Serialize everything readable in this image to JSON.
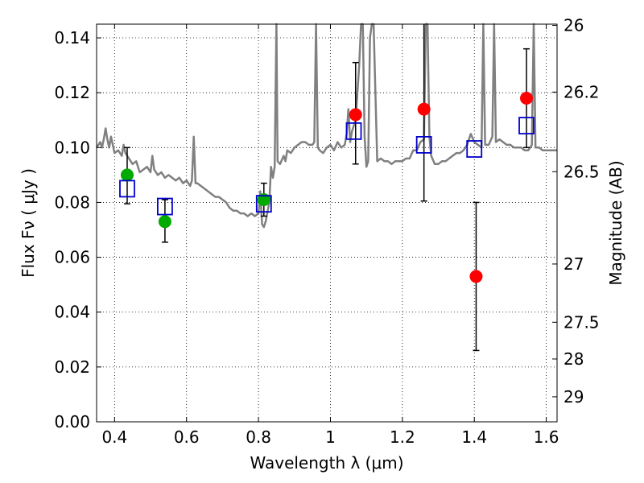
{
  "chart_data": {
    "type": "scatter",
    "xlabel": "Wavelength  λ (μm)",
    "ylabel": "Flux  Fν  ( μJy )",
    "y2label": "Magnitude (AB)",
    "xlim": [
      0.35,
      1.63
    ],
    "ylim": [
      0.0,
      0.145
    ],
    "grid": true,
    "x_ticks": [
      0.4,
      0.6,
      0.8,
      1.0,
      1.2,
      1.4,
      1.6
    ],
    "x_tick_labels": [
      "0.4",
      "0.6",
      "0.8",
      "1",
      "1.2",
      "1.4",
      "1.6"
    ],
    "y_ticks": [
      0.0,
      0.02,
      0.04,
      0.06,
      0.08,
      0.1,
      0.12,
      0.14
    ],
    "y_tick_labels": [
      "0.00",
      "0.02",
      "0.04",
      "0.06",
      "0.08",
      "0.10",
      "0.12",
      "0.14"
    ],
    "y2_ticks": [
      26,
      26.2,
      26.5,
      27,
      27.5,
      28,
      29
    ],
    "y2_tick_labels": [
      "26",
      "26.2",
      "26.5",
      "27",
      "27.5",
      "28",
      "29"
    ],
    "colors": {
      "green": "#00aa00",
      "red": "#ff0000",
      "blue": "#0000cc",
      "spectrum": "#808080",
      "errorbar": "#000000"
    },
    "series": [
      {
        "marker": "circle-green",
        "points": [
          {
            "x": 0.435,
            "y": 0.09,
            "yerr_low": 0.0795,
            "yerr_high": 0.1
          },
          {
            "x": 0.54,
            "y": 0.073,
            "yerr_low": 0.0655,
            "yerr_high": 0.081
          },
          {
            "x": 0.815,
            "y": 0.081,
            "yerr_low": 0.075,
            "yerr_high": 0.087
          }
        ]
      },
      {
        "marker": "circle-red",
        "points": [
          {
            "x": 1.07,
            "y": 0.112,
            "yerr_low": 0.094,
            "yerr_high": 0.131
          },
          {
            "x": 1.26,
            "y": 0.114,
            "yerr_low": 0.0805,
            "yerr_high": 0.146
          },
          {
            "x": 1.405,
            "y": 0.053,
            "yerr_low": 0.026,
            "yerr_high": 0.08
          },
          {
            "x": 1.545,
            "y": 0.118,
            "yerr_low": 0.1,
            "yerr_high": 0.136
          }
        ]
      },
      {
        "marker": "square-blue-open",
        "points": [
          {
            "x": 0.435,
            "y": 0.085
          },
          {
            "x": 0.54,
            "y": 0.0785
          },
          {
            "x": 0.815,
            "y": 0.0795
          },
          {
            "x": 1.065,
            "y": 0.106
          },
          {
            "x": 1.26,
            "y": 0.101
          },
          {
            "x": 1.4,
            "y": 0.0995
          },
          {
            "x": 1.545,
            "y": 0.108
          }
        ]
      },
      {
        "marker": "line-gray",
        "points": [
          [
            0.35,
            0.1
          ],
          [
            0.36,
            0.102
          ],
          [
            0.365,
            0.1
          ],
          [
            0.37,
            0.103
          ],
          [
            0.375,
            0.107
          ],
          [
            0.38,
            0.103
          ],
          [
            0.385,
            0.1
          ],
          [
            0.39,
            0.104
          ],
          [
            0.395,
            0.101
          ],
          [
            0.4,
            0.098
          ],
          [
            0.41,
            0.099
          ],
          [
            0.42,
            0.097
          ],
          [
            0.425,
            0.101
          ],
          [
            0.43,
            0.098
          ],
          [
            0.44,
            0.096
          ],
          [
            0.45,
            0.094
          ],
          [
            0.46,
            0.095
          ],
          [
            0.47,
            0.091
          ],
          [
            0.48,
            0.092
          ],
          [
            0.49,
            0.093
          ],
          [
            0.5,
            0.091
          ],
          [
            0.505,
            0.097
          ],
          [
            0.51,
            0.092
          ],
          [
            0.52,
            0.09
          ],
          [
            0.53,
            0.091
          ],
          [
            0.54,
            0.089
          ],
          [
            0.55,
            0.09
          ],
          [
            0.56,
            0.089
          ],
          [
            0.57,
            0.088
          ],
          [
            0.58,
            0.089
          ],
          [
            0.59,
            0.087
          ],
          [
            0.6,
            0.088
          ],
          [
            0.61,
            0.086
          ],
          [
            0.615,
            0.088
          ],
          [
            0.62,
            0.104
          ],
          [
            0.625,
            0.087
          ],
          [
            0.63,
            0.087
          ],
          [
            0.64,
            0.086
          ],
          [
            0.65,
            0.085
          ],
          [
            0.66,
            0.084
          ],
          [
            0.67,
            0.083
          ],
          [
            0.68,
            0.082
          ],
          [
            0.69,
            0.082
          ],
          [
            0.7,
            0.081
          ],
          [
            0.71,
            0.08
          ],
          [
            0.72,
            0.078
          ],
          [
            0.73,
            0.077
          ],
          [
            0.74,
            0.077
          ],
          [
            0.75,
            0.076
          ],
          [
            0.76,
            0.076
          ],
          [
            0.77,
            0.075
          ],
          [
            0.78,
            0.076
          ],
          [
            0.79,
            0.075
          ],
          [
            0.8,
            0.076
          ],
          [
            0.805,
            0.084
          ],
          [
            0.81,
            0.072
          ],
          [
            0.815,
            0.071
          ],
          [
            0.82,
            0.073
          ],
          [
            0.83,
            0.08
          ],
          [
            0.835,
            0.093
          ],
          [
            0.84,
            0.089
          ],
          [
            0.845,
            0.093
          ],
          [
            0.85,
            0.145
          ],
          [
            0.853,
            0.095
          ],
          [
            0.86,
            0.094
          ],
          [
            0.87,
            0.097
          ],
          [
            0.875,
            0.095
          ],
          [
            0.88,
            0.099
          ],
          [
            0.89,
            0.098
          ],
          [
            0.9,
            0.1
          ],
          [
            0.91,
            0.101
          ],
          [
            0.92,
            0.102
          ],
          [
            0.93,
            0.102
          ],
          [
            0.94,
            0.101
          ],
          [
            0.95,
            0.101
          ],
          [
            0.955,
            0.102
          ],
          [
            0.96,
            0.145
          ],
          [
            0.965,
            0.1
          ],
          [
            0.97,
            0.099
          ],
          [
            0.98,
            0.098
          ],
          [
            0.99,
            0.1
          ],
          [
            1.0,
            0.101
          ],
          [
            1.01,
            0.099
          ],
          [
            1.02,
            0.102
          ],
          [
            1.03,
            0.1
          ],
          [
            1.04,
            0.101
          ],
          [
            1.045,
            0.105
          ],
          [
            1.05,
            0.114
          ],
          [
            1.055,
            0.102
          ],
          [
            1.06,
            0.106
          ],
          [
            1.07,
            0.11
          ],
          [
            1.08,
            0.13
          ],
          [
            1.085,
            0.145
          ],
          [
            1.09,
            0.145
          ],
          [
            1.095,
            0.104
          ],
          [
            1.1,
            0.093
          ],
          [
            1.105,
            0.095
          ],
          [
            1.11,
            0.14
          ],
          [
            1.115,
            0.145
          ],
          [
            1.12,
            0.145
          ],
          [
            1.13,
            0.095
          ],
          [
            1.14,
            0.096
          ],
          [
            1.15,
            0.095
          ],
          [
            1.16,
            0.095
          ],
          [
            1.17,
            0.094
          ],
          [
            1.18,
            0.095
          ],
          [
            1.19,
            0.095
          ],
          [
            1.2,
            0.095
          ],
          [
            1.21,
            0.096
          ],
          [
            1.22,
            0.096
          ],
          [
            1.23,
            0.099
          ],
          [
            1.24,
            0.099
          ],
          [
            1.25,
            0.102
          ],
          [
            1.26,
            0.103
          ],
          [
            1.265,
            0.145
          ],
          [
            1.27,
            0.145
          ],
          [
            1.275,
            0.104
          ],
          [
            1.28,
            0.097
          ],
          [
            1.29,
            0.094
          ],
          [
            1.3,
            0.094
          ],
          [
            1.31,
            0.095
          ],
          [
            1.32,
            0.095
          ],
          [
            1.33,
            0.096
          ],
          [
            1.34,
            0.097
          ],
          [
            1.35,
            0.098
          ],
          [
            1.36,
            0.098
          ],
          [
            1.37,
            0.099
          ],
          [
            1.38,
            0.101
          ],
          [
            1.39,
            0.105
          ],
          [
            1.4,
            0.102
          ],
          [
            1.42,
            0.1
          ],
          [
            1.425,
            0.145
          ],
          [
            1.43,
            0.101
          ],
          [
            1.44,
            0.101
          ],
          [
            1.45,
            0.104
          ],
          [
            1.455,
            0.145
          ],
          [
            1.46,
            0.102
          ],
          [
            1.47,
            0.103
          ],
          [
            1.48,
            0.102
          ],
          [
            1.49,
            0.101
          ],
          [
            1.5,
            0.101
          ],
          [
            1.51,
            0.1
          ],
          [
            1.52,
            0.1
          ],
          [
            1.53,
            0.1
          ],
          [
            1.54,
            0.099
          ],
          [
            1.55,
            0.099
          ],
          [
            1.56,
            0.101
          ],
          [
            1.565,
            0.145
          ],
          [
            1.57,
            0.1
          ],
          [
            1.58,
            0.1
          ],
          [
            1.59,
            0.099
          ],
          [
            1.6,
            0.099
          ],
          [
            1.61,
            0.099
          ],
          [
            1.62,
            0.099
          ],
          [
            1.63,
            0.099
          ]
        ]
      }
    ]
  }
}
